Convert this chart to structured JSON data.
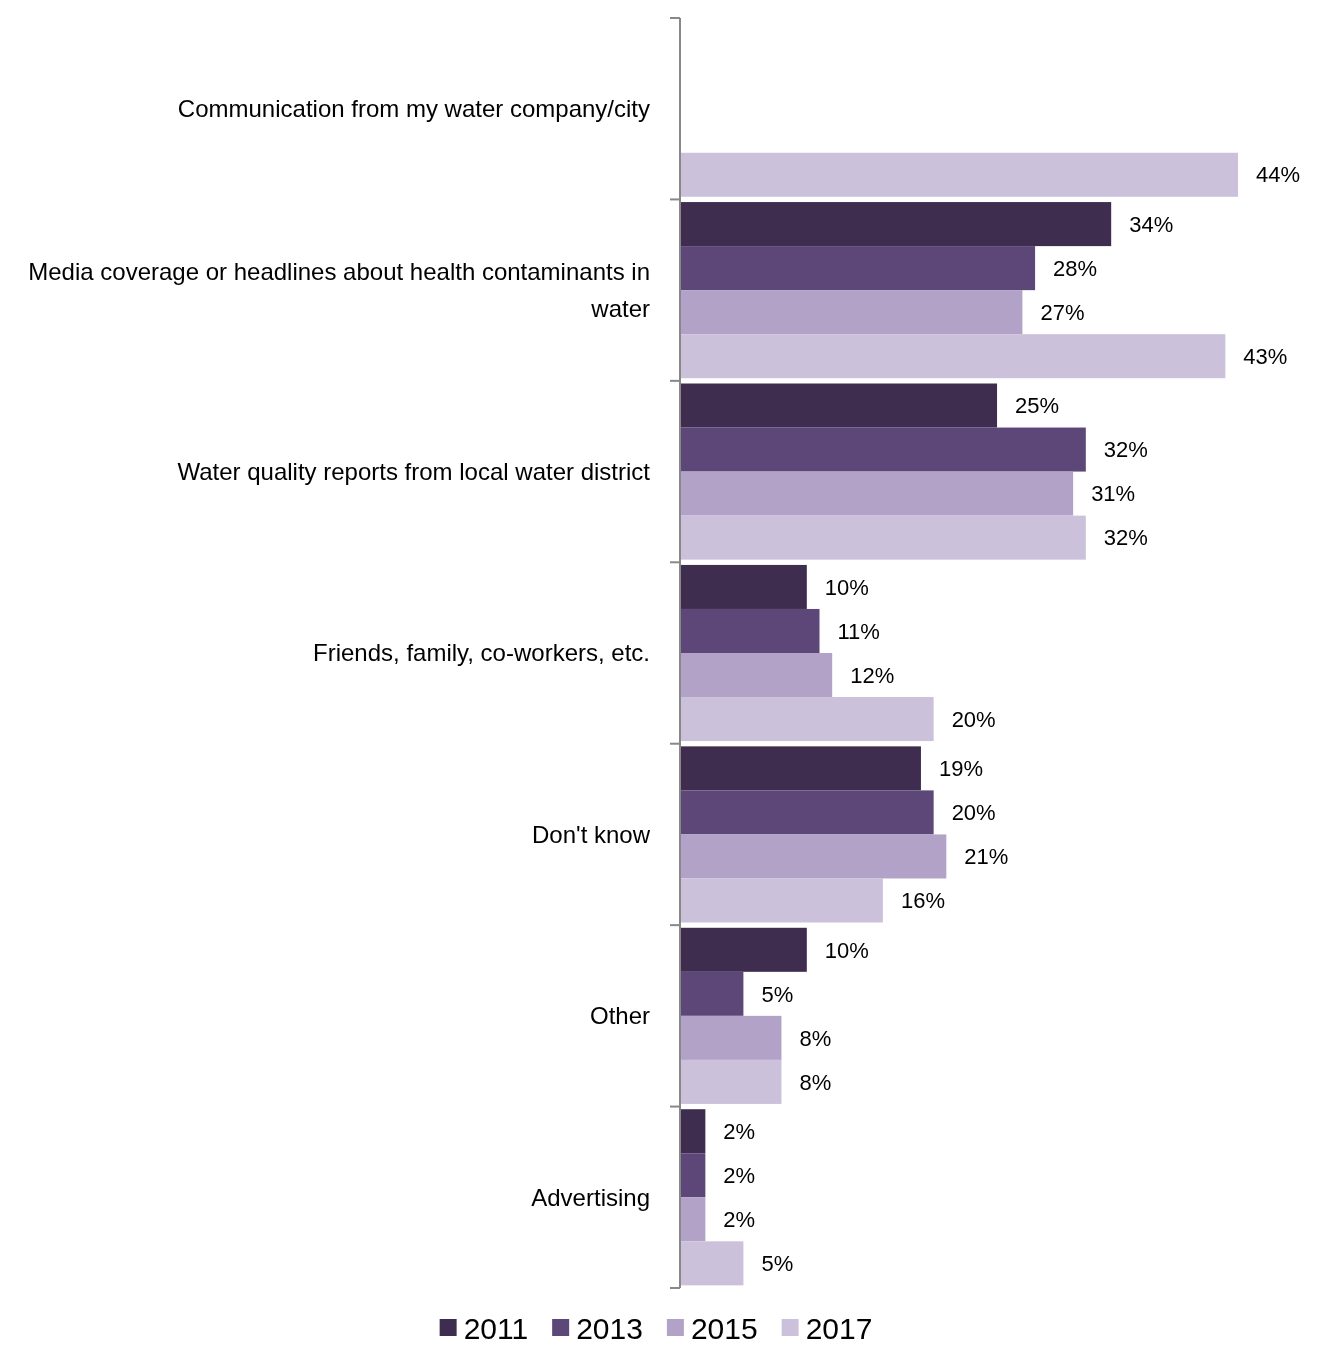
{
  "chart_data": {
    "type": "bar",
    "orientation": "horizontal",
    "categories": [
      "Communication from my water company/city",
      "Media coverage or headlines about health contaminants in water",
      "Water quality reports from local water district",
      "Friends, family, co-workers, etc.",
      "Don't know",
      "Other",
      "Advertising"
    ],
    "series": [
      {
        "name": "2011",
        "color": "#3f2d50",
        "values": [
          null,
          34,
          25,
          10,
          19,
          10,
          2
        ],
        "value_labels": [
          null,
          "34%",
          "25%",
          "10%",
          "19%",
          "10%",
          "2%"
        ]
      },
      {
        "name": "2013",
        "color": "#5c4778",
        "values": [
          null,
          28,
          32,
          11,
          20,
          5,
          2
        ],
        "value_labels": [
          null,
          "28%",
          "32%",
          "11%",
          "20%",
          "5%",
          "2%"
        ]
      },
      {
        "name": "2015",
        "color": "#b3a2c7",
        "values": [
          null,
          27,
          31,
          12,
          21,
          8,
          2
        ],
        "value_labels": [
          null,
          "27%",
          "31%",
          "12%",
          "21%",
          "8%",
          "2%"
        ]
      },
      {
        "name": "2017",
        "color": "#ccc1da",
        "values": [
          44,
          43,
          32,
          20,
          16,
          8,
          5
        ],
        "value_labels": [
          "44%",
          "43%",
          "32%",
          "20%",
          "16%",
          "8%",
          "5%"
        ]
      }
    ],
    "legend": "bottom"
  }
}
